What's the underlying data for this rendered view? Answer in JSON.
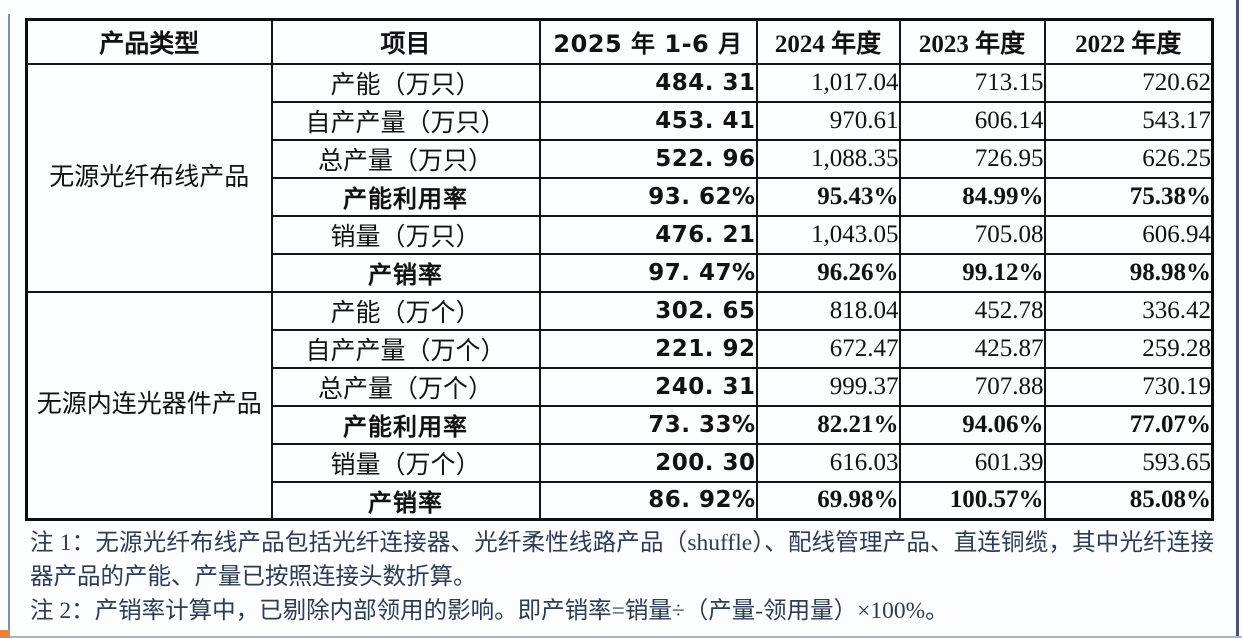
{
  "table": {
    "headers": [
      "产品类型",
      "项目",
      "2025 年 1-6 月",
      "2024 年度",
      "2023 年度",
      "2022 年度"
    ],
    "categories": [
      "无源光纤布线产品",
      "无源内连光器件产品"
    ],
    "rows": [
      {
        "label": "产能（万只）",
        "values": [
          "484. 31",
          "1,017.04",
          "713.15",
          "720.62"
        ]
      },
      {
        "label": "自产产量（万只）",
        "values": [
          "453. 41",
          "970.61",
          "606.14",
          "543.17"
        ]
      },
      {
        "label": "总产量（万只）",
        "values": [
          "522. 96",
          "1,088.35",
          "726.95",
          "626.25"
        ]
      },
      {
        "label": "产能利用率",
        "values": [
          "93. 62%",
          "95.43%",
          "84.99%",
          "75.38%"
        ]
      },
      {
        "label": "销量（万只）",
        "values": [
          "476. 21",
          "1,043.05",
          "705.08",
          "606.94"
        ]
      },
      {
        "label": "产销率",
        "values": [
          "97. 47%",
          "96.26%",
          "99.12%",
          "98.98%"
        ]
      },
      {
        "label": "产能（万个）",
        "values": [
          "302. 65",
          "818.04",
          "452.78",
          "336.42"
        ]
      },
      {
        "label": "自产产量（万个）",
        "values": [
          "221. 92",
          "672.47",
          "425.87",
          "259.28"
        ]
      },
      {
        "label": "总产量（万个）",
        "values": [
          "240. 31",
          "999.37",
          "707.88",
          "730.19"
        ]
      },
      {
        "label": "产能利用率",
        "values": [
          "73. 33%",
          "82.21%",
          "94.06%",
          "77.07%"
        ]
      },
      {
        "label": "销量（万个）",
        "values": [
          "200. 30",
          "616.03",
          "601.39",
          "593.65"
        ]
      },
      {
        "label": "产销率",
        "values": [
          "86. 92%",
          "69.98%",
          "100.57%",
          "85.08%"
        ]
      }
    ]
  },
  "notes": [
    "注 1：无源光纤布线产品包括光纤连接器、光纤柔性线路产品（shuffle）、配线管理产品、直连铜缆，其中光纤连接器产品的产能、产量已按照连接头数折算。",
    "注 2：产销率计算中，已剔除内部领用的影响。即产销率=销量÷（产量-领用量）×100%。"
  ],
  "colors": {
    "accent_corner": "#e8823c",
    "rail_left": "#7b90ad",
    "rail_right": "#45566e",
    "border": "#141414",
    "note_text": "#2d3b53"
  }
}
